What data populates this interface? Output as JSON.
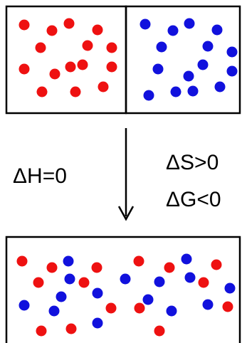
{
  "labels": {
    "delta_h": "ΔH=0",
    "delta_s": "ΔS>0",
    "delta_g": "ΔG<0"
  },
  "colors": {
    "red_particle": "#ee1111",
    "blue_particle": "#1111dd",
    "box_stroke": "#000000"
  },
  "particle_counts": {
    "before_left_red": 15,
    "before_right_blue": 15,
    "after_red": 15,
    "after_blue": 15
  }
}
